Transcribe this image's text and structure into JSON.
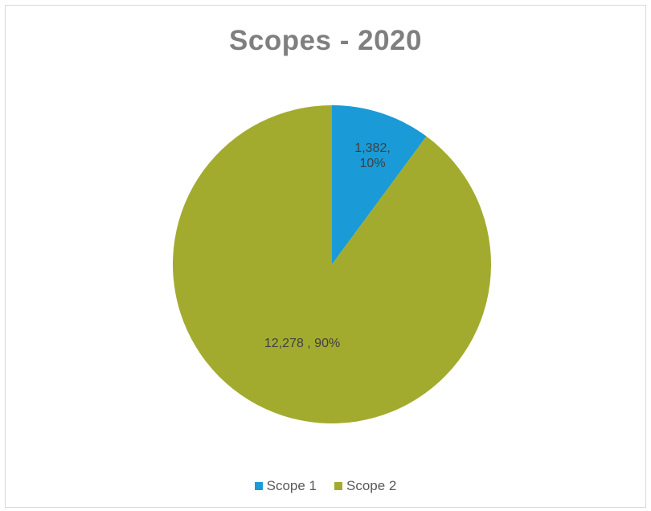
{
  "chart_data": {
    "type": "pie",
    "title": "Scopes - 2020",
    "legend_position": "bottom",
    "slices": [
      {
        "name": "Scope 1",
        "value": 1382,
        "percent": 10,
        "label": "1,382,\n10%",
        "color": "#1a9ad6"
      },
      {
        "name": "Scope 2",
        "value": 12278,
        "percent": 90,
        "label": "12,278 , 90%",
        "color": "#a3ab2f"
      }
    ],
    "legend": [
      {
        "name": "Scope 1",
        "color": "#1a9ad6"
      },
      {
        "name": "Scope 2",
        "color": "#a3ab2f"
      }
    ]
  }
}
